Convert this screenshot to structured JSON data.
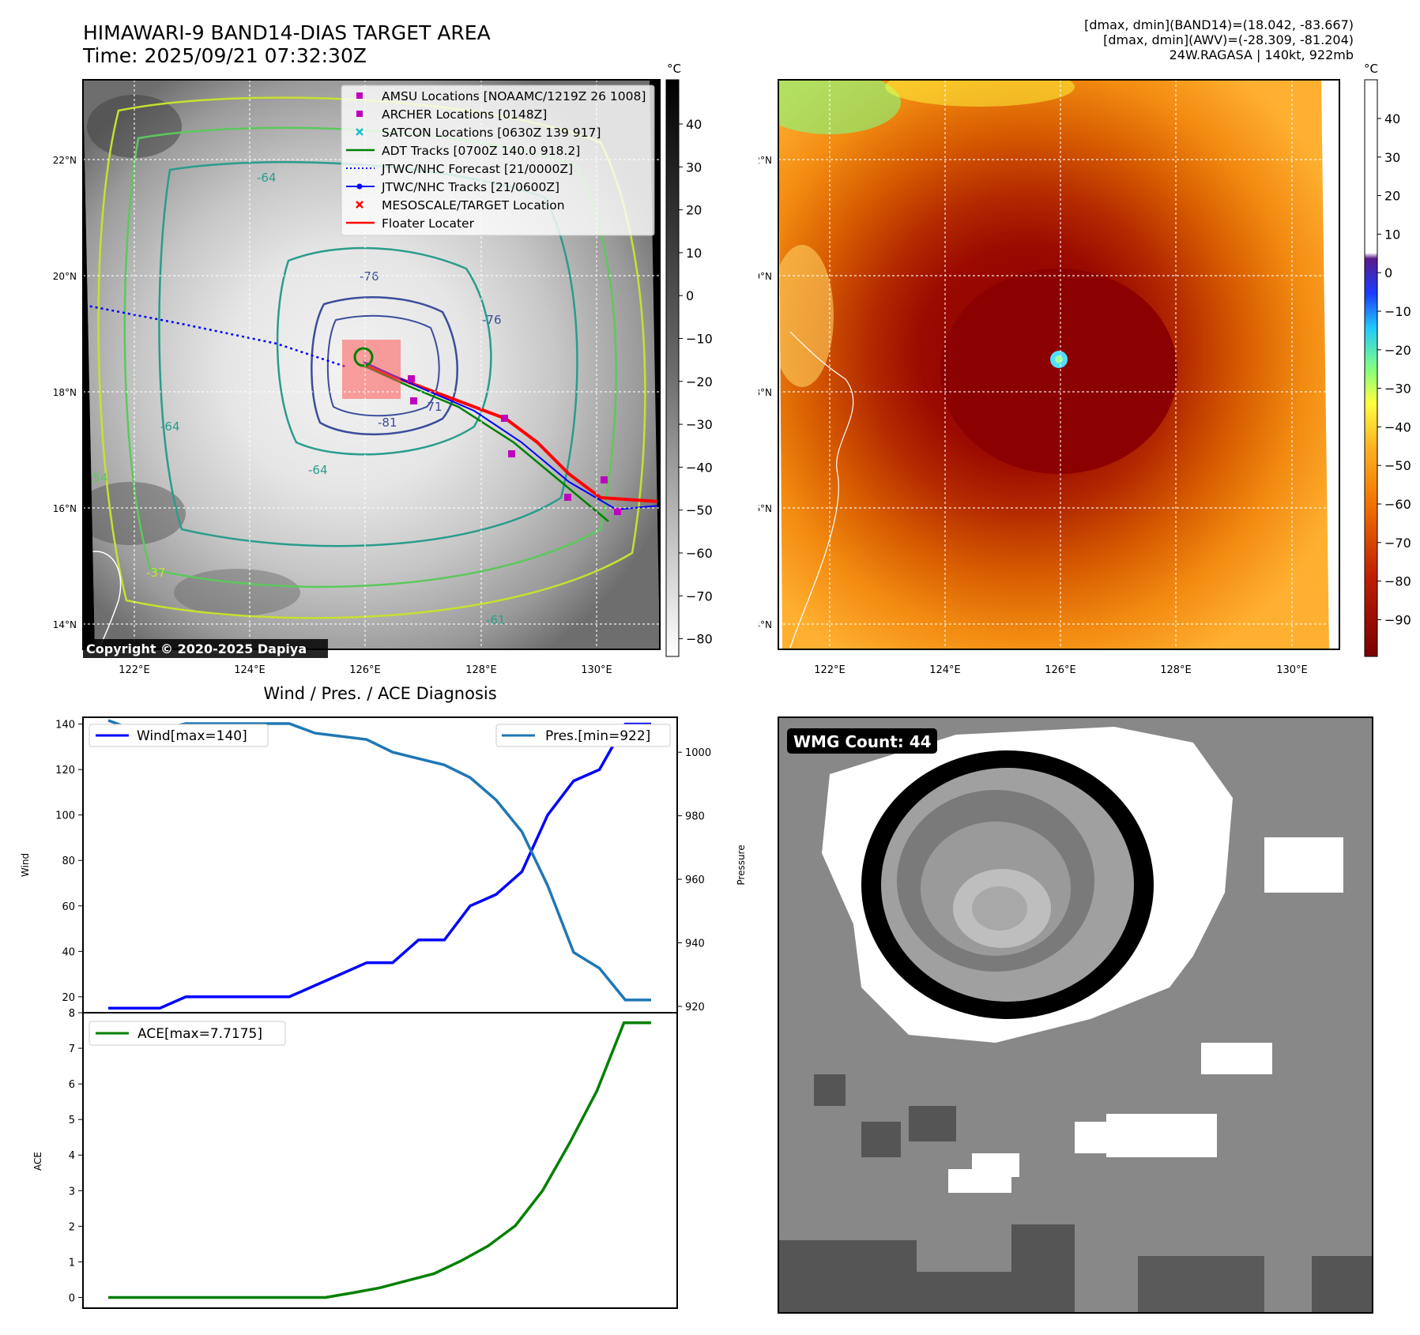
{
  "header": {
    "title_line1": "HIMAWARI-9 BAND14-DIAS TARGET AREA",
    "title_line2": "Time: 2025/09/21 07:32:30Z",
    "info_line1": "[dmax, dmin](BAND14)=(18.042, -83.667)",
    "info_line2": "[dmax, dmin](AWV)=(-28.309, -81.204)",
    "info_line3": "24W.RAGASA | 140kt, 922mb"
  },
  "colors": {
    "wind": "#0000ff",
    "pressure": "#1f77b4",
    "ace": "#008000",
    "amsu": "#bf00bf",
    "satcon": "#17becf",
    "adt": "#008000",
    "floater": "#ff0000",
    "sst_warm": "#ff8c00",
    "sst_core": "#8b0000"
  },
  "map": {
    "lon_labels": [
      "122°E",
      "124°E",
      "126°E",
      "128°E",
      "130°E"
    ],
    "lat_labels": [
      "22°N",
      "20°N",
      "18°N",
      "16°N",
      "14°N"
    ],
    "colorbar_unit": "°C",
    "ir_colorbar_ticks": [
      "40",
      "30",
      "20",
      "10",
      "0",
      "−10",
      "−20",
      "−30",
      "−40",
      "−50",
      "−60",
      "−70",
      "−80"
    ],
    "sst_colorbar_ticks": [
      "40",
      "30",
      "20",
      "10",
      "0",
      "−10",
      "−20",
      "−30",
      "−40",
      "−50",
      "−60",
      "−70",
      "−80",
      "−90"
    ],
    "copyright": "Copyright © 2020-2025 Dapiya",
    "contour_labels": [
      "-76",
      "-76",
      "-81",
      "-64",
      "-64",
      "-64",
      "-54",
      "-37",
      "-61",
      "-71"
    ],
    "legend": [
      {
        "label": "AMSU Locations [NOAAMC/1219Z 26 1008]",
        "marker": "square",
        "color": "#bf00bf"
      },
      {
        "label": "ARCHER Locations [0148Z]",
        "marker": "square",
        "color": "#bf00bf"
      },
      {
        "label": "SATCON Locations [0630Z 139 917]",
        "marker": "x",
        "color": "#17becf"
      },
      {
        "label": "ADT Tracks [0700Z 140.0 918.2]",
        "marker": "line",
        "color": "#008000"
      },
      {
        "label": "JTWC/NHC Forecast [21/0000Z]",
        "marker": "dotted",
        "color": "#0000ff"
      },
      {
        "label": "JTWC/NHC Tracks [21/0600Z]",
        "marker": "dotline",
        "color": "#0000ff"
      },
      {
        "label": "MESOSCALE/TARGET Location",
        "marker": "x",
        "color": "#ff0000"
      },
      {
        "label": "Floater Locater",
        "marker": "line",
        "color": "#ff0000"
      }
    ]
  },
  "chart_data": [
    {
      "type": "line",
      "title": "Wind / Pres. / ACE Diagnosis",
      "ylabel": "Wind",
      "y2label": "Pressure",
      "ylim": [
        13,
        143
      ],
      "y2lim": [
        918,
        1011
      ],
      "yticks": [
        20,
        40,
        60,
        80,
        100,
        120,
        140
      ],
      "y2ticks": [
        920,
        940,
        960,
        980,
        1000
      ],
      "x": [
        0,
        1,
        2,
        3,
        4,
        5,
        6,
        7,
        8,
        9,
        10,
        11,
        12,
        13,
        14,
        15,
        16,
        17,
        18,
        19,
        20,
        21
      ],
      "series": [
        {
          "name": "Wind[max=140]",
          "axis": "left",
          "values": [
            15,
            15,
            15,
            20,
            20,
            20,
            20,
            20,
            25,
            30,
            35,
            35,
            45,
            45,
            60,
            65,
            75,
            100,
            115,
            120,
            140,
            140
          ]
        },
        {
          "name": "Pres.[min=922]",
          "axis": "right",
          "values": [
            1010,
            1007,
            1007,
            1009,
            1009,
            1009,
            1009,
            1009,
            1006,
            1005,
            1004,
            1000,
            998,
            996,
            992,
            985,
            975,
            958,
            937,
            932,
            922,
            922
          ]
        }
      ]
    },
    {
      "type": "line",
      "ylabel": "ACE",
      "ylim": [
        -0.3,
        8
      ],
      "yticks": [
        0,
        1,
        2,
        3,
        4,
        5,
        6,
        7,
        8
      ],
      "x": [
        0,
        1,
        2,
        3,
        4,
        5,
        6,
        7,
        8,
        9,
        10,
        11,
        12,
        13,
        14,
        15,
        16,
        17,
        18,
        19,
        20
      ],
      "series": [
        {
          "name": "ACE[max=7.7175]",
          "values": [
            0,
            0,
            0,
            0,
            0,
            0,
            0,
            0,
            0,
            0.13,
            0.27,
            0.47,
            0.67,
            1.03,
            1.45,
            2.02,
            3.0,
            4.34,
            5.8,
            7.7175,
            7.7175
          ]
        }
      ]
    }
  ],
  "wmg": {
    "label": "WMG Count: 44"
  }
}
